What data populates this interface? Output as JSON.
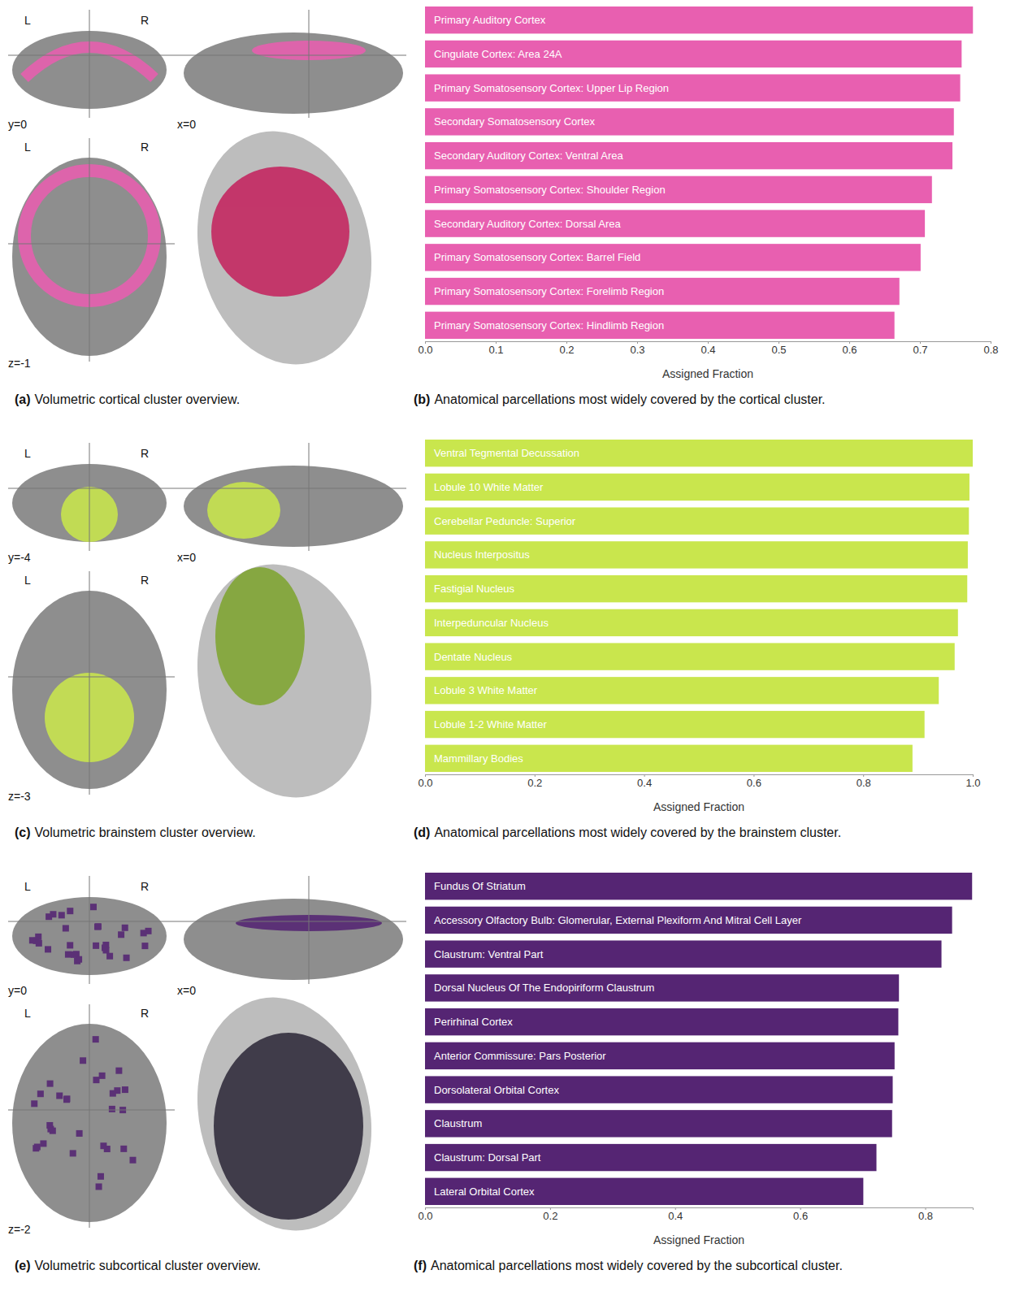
{
  "chart_data": [
    {
      "type": "bar",
      "orientation": "horizontal",
      "label": "(b)",
      "title": "Anatomical parcellations most widely covered by the cortical cluster.",
      "xlabel": "Assigned Fraction",
      "color": "#e85fb0",
      "categories": [
        "Primary Auditory Cortex",
        "Cingulate Cortex: Area 24A",
        "Primary Somatosensory Cortex: Upper Lip Region",
        "Secondary Somatosensory Cortex",
        "Secondary Auditory Cortex: Ventral Area",
        "Primary Somatosensory Cortex: Shoulder Region",
        "Secondary Auditory Cortex: Dorsal Area",
        "Primary Somatosensory Cortex: Barrel Field",
        "Primary Somatosensory Cortex: Forelimb Region",
        "Primary Somatosensory Cortex: Hindlimb Region"
      ],
      "values": [
        0.775,
        0.759,
        0.757,
        0.748,
        0.746,
        0.717,
        0.707,
        0.701,
        0.671,
        0.664
      ],
      "xlim": [
        0,
        0.8
      ],
      "xticks": [
        {
          "value": 0,
          "label": "0.0"
        },
        0.1,
        0.2,
        0.3,
        0.4,
        0.5,
        0.6,
        0.7,
        0.8
      ]
    },
    {
      "type": "bar",
      "orientation": "horizontal",
      "label": "(d)",
      "title": "Anatomical parcellations most widely covered by the brainstem cluster.",
      "xlabel": "Assigned Fraction",
      "color": "#c9e64d",
      "categories": [
        "Ventral Tegmental Decussation",
        "Lobule 10 White Matter",
        "Cerebellar Peduncle: Superior",
        "Nucleus Interpositus",
        "Fastigial Nucleus",
        "Interpeduncular Nucleus",
        "Dentate Nucleus",
        "Lobule 3 White Matter",
        "Lobule 1-2 White Matter",
        "Mammillary Bodies"
      ],
      "values": [
        1.0,
        0.994,
        0.993,
        0.991,
        0.99,
        0.973,
        0.967,
        0.938,
        0.912,
        0.89
      ],
      "xlim": [
        0,
        1.0
      ],
      "xticks": [
        {
          "value": 0,
          "label": "0.0"
        },
        0.2,
        0.4,
        0.6,
        0.8,
        {
          "value": 1,
          "label": "1.0"
        }
      ]
    },
    {
      "type": "bar",
      "orientation": "horizontal",
      "label": "(f)",
      "title": "Anatomical parcellations most widely covered by the subcortical cluster.",
      "xlabel": "Assigned Fraction",
      "color": "#552573",
      "categories": [
        "Fundus Of Striatum",
        "Accessory Olfactory Bulb: Glomerular, External Plexiform And Mitral Cell Layer",
        "Claustrum: Ventral Part",
        "Dorsal Nucleus Of The Endopiriform Claustrum",
        "Perirhinal Cortex",
        "Anterior Commissure: Pars Posterior",
        "Dorsolateral Orbital Cortex",
        "Claustrum",
        "Claustrum: Dorsal Part",
        "Lateral Orbital Cortex"
      ],
      "values": [
        0.875,
        0.843,
        0.826,
        0.758,
        0.757,
        0.751,
        0.748,
        0.747,
        0.722,
        0.701
      ],
      "xlim": [
        0,
        0.876
      ],
      "xticks": [
        {
          "value": 0,
          "label": "0.0"
        },
        0.2,
        0.4,
        0.6,
        0.8
      ]
    }
  ],
  "brain_panels": [
    {
      "label": "(a)",
      "title": "Volumetric cortical cluster overview.",
      "left": "L",
      "right": "R",
      "coronal": "y=0",
      "sagittal": "x=0",
      "axial": "z=-1",
      "color": "#e85fb0"
    },
    {
      "label": "(c)",
      "title": "Volumetric brainstem cluster overview.",
      "left": "L",
      "right": "R",
      "coronal": "y=-4",
      "sagittal": "x=0",
      "axial": "z=-3",
      "color": "#c9e64d"
    },
    {
      "label": "(e)",
      "title": "Volumetric subcortical cluster overview.",
      "left": "L",
      "right": "R",
      "coronal": "y=0",
      "sagittal": "x=0",
      "axial": "z=-2",
      "color": "#552573"
    }
  ]
}
